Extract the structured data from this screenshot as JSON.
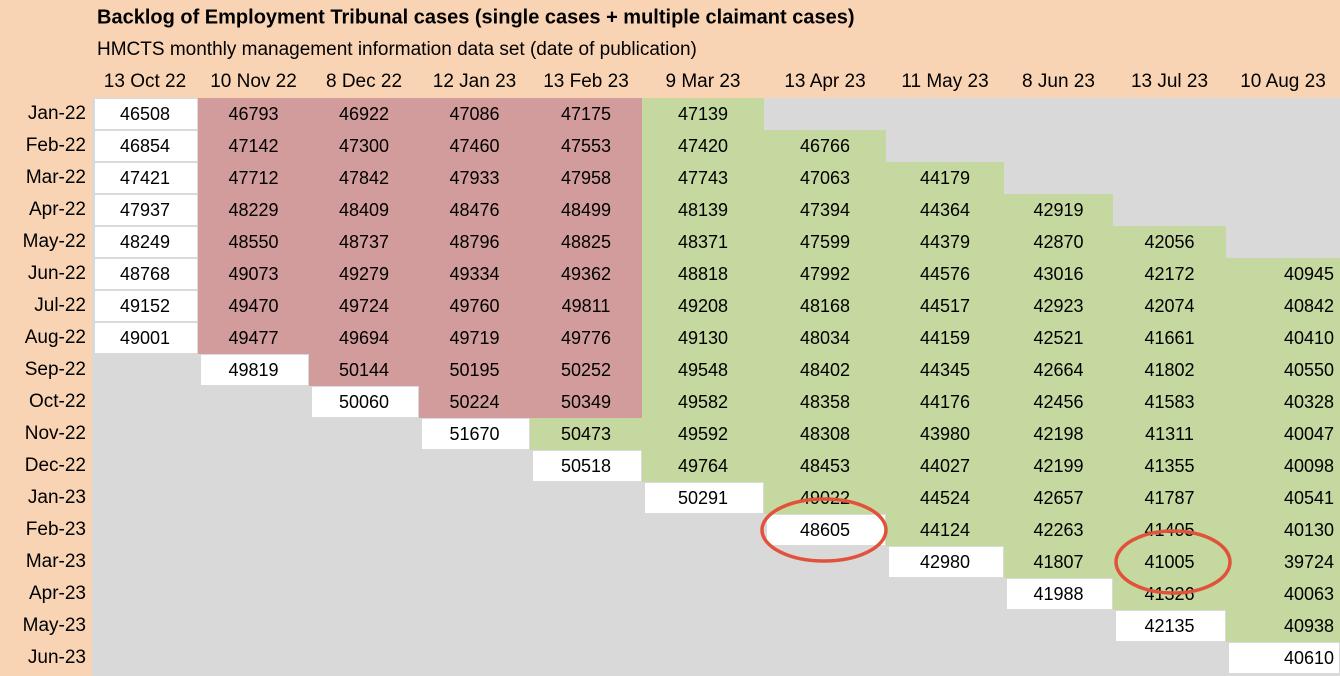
{
  "table": {
    "title": "Backlog of Employment Tribunal cases (single cases + multiple claimant cases)",
    "subtitle": "HMCTS monthly management information data set (date of publication)",
    "columns": [
      "13 Oct 22",
      "10 Nov 22",
      "8 Dec 22",
      "12 Jan 23",
      "13 Feb 23",
      "9 Mar 23",
      "13 Apr 23",
      "11 May 23",
      "8 Jun 23",
      "13 Jul 23",
      "10 Aug 23"
    ],
    "rows": [
      {
        "label": "Jan-22",
        "values": [
          46508,
          46793,
          46922,
          47086,
          47175,
          47139,
          null,
          null,
          null,
          null,
          null
        ]
      },
      {
        "label": "Feb-22",
        "values": [
          46854,
          47142,
          47300,
          47460,
          47553,
          47420,
          46766,
          null,
          null,
          null,
          null
        ]
      },
      {
        "label": "Mar-22",
        "values": [
          47421,
          47712,
          47842,
          47933,
          47958,
          47743,
          47063,
          44179,
          null,
          null,
          null
        ]
      },
      {
        "label": "Apr-22",
        "values": [
          47937,
          48229,
          48409,
          48476,
          48499,
          48139,
          47394,
          44364,
          42919,
          null,
          null
        ]
      },
      {
        "label": "May-22",
        "values": [
          48249,
          48550,
          48737,
          48796,
          48825,
          48371,
          47599,
          44379,
          42870,
          42056,
          null
        ]
      },
      {
        "label": "Jun-22",
        "values": [
          48768,
          49073,
          49279,
          49334,
          49362,
          48818,
          47992,
          44576,
          43016,
          42172,
          40945
        ]
      },
      {
        "label": "Jul-22",
        "values": [
          49152,
          49470,
          49724,
          49760,
          49811,
          49208,
          48168,
          44517,
          42923,
          42074,
          40842
        ]
      },
      {
        "label": "Aug-22",
        "values": [
          49001,
          49477,
          49694,
          49719,
          49776,
          49130,
          48034,
          44159,
          42521,
          41661,
          40410
        ]
      },
      {
        "label": "Sep-22",
        "values": [
          null,
          49819,
          50144,
          50195,
          50252,
          49548,
          48402,
          44345,
          42664,
          41802,
          40550
        ]
      },
      {
        "label": "Oct-22",
        "values": [
          null,
          null,
          50060,
          50224,
          50349,
          49582,
          48358,
          44176,
          42456,
          41583,
          40328
        ]
      },
      {
        "label": "Nov-22",
        "values": [
          null,
          null,
          null,
          51670,
          50473,
          49592,
          48308,
          43980,
          42198,
          41311,
          40047
        ]
      },
      {
        "label": "Dec-22",
        "values": [
          null,
          null,
          null,
          null,
          50518,
          49764,
          48453,
          44027,
          42199,
          41355,
          40098
        ]
      },
      {
        "label": "Jan-23",
        "values": [
          null,
          null,
          null,
          null,
          null,
          50291,
          49022,
          44524,
          42657,
          41787,
          40541
        ]
      },
      {
        "label": "Feb-23",
        "values": [
          null,
          null,
          null,
          null,
          null,
          null,
          48605,
          44124,
          42263,
          41405,
          40130
        ]
      },
      {
        "label": "Mar-23",
        "values": [
          null,
          null,
          null,
          null,
          null,
          null,
          null,
          42980,
          41807,
          41005,
          39724
        ]
      },
      {
        "label": "Apr-23",
        "values": [
          null,
          null,
          null,
          null,
          null,
          null,
          null,
          null,
          41988,
          41326,
          40063
        ]
      },
      {
        "label": "May-23",
        "values": [
          null,
          null,
          null,
          null,
          null,
          null,
          null,
          null,
          null,
          42135,
          40938
        ]
      },
      {
        "label": "Jun-23",
        "values": [
          null,
          null,
          null,
          null,
          null,
          null,
          null,
          null,
          null,
          null,
          40610
        ]
      }
    ]
  }
}
